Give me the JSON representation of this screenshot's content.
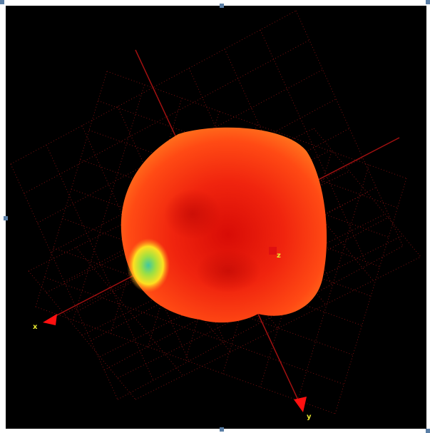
{
  "axis_labels": {
    "x": "x",
    "y": "y",
    "z": "z"
  }
}
